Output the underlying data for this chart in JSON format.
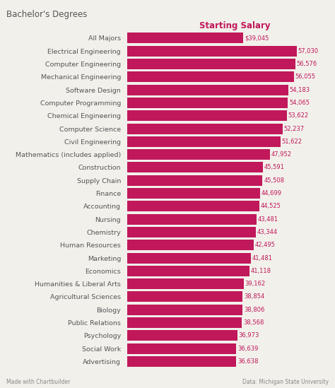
{
  "title": "Bachelor's Degrees",
  "column_header": "Starting Salary",
  "categories": [
    "All Majors",
    "Electrical Engineering",
    "Computer Engineering",
    "Mechanical Engineering",
    "Software Design",
    "Computer Programming",
    "Chemical Engineering",
    "Computer Science",
    "Civil Engineering",
    "Mathematics (includes applied)",
    "Construction",
    "Supply Chain",
    "Finance",
    "Accounting",
    "Nursing",
    "Chemistry",
    "Human Resources",
    "Marketing",
    "Economics",
    "Humanities & Liberal Arts",
    "Agricultural Sciences",
    "Biology",
    "Public Relations",
    "Psychology",
    "Social Work",
    "Advertising"
  ],
  "values": [
    39045,
    57030,
    56576,
    56055,
    54183,
    54065,
    53622,
    52237,
    51622,
    47952,
    45591,
    45508,
    44699,
    44525,
    43481,
    43344,
    42495,
    41481,
    41118,
    39162,
    38854,
    38806,
    38568,
    36973,
    36639,
    36638
  ],
  "labels": [
    "$39,045",
    "57,030",
    "56,576",
    "56,055",
    "54,183",
    "54,065",
    "53,622",
    "52,237",
    "51,622",
    "47,952",
    "45,591",
    "45,508",
    "44,699",
    "44,525",
    "43,481",
    "43,344",
    "42,495",
    "41,481",
    "41,118",
    "39,162",
    "38,854",
    "38,806",
    "38,568",
    "36,973",
    "36,639",
    "36,638"
  ],
  "bar_color": "#C0185A",
  "label_color": "#C0185A",
  "background_color": "#f2f0eb",
  "title_color": "#555555",
  "header_color": "#C0185A",
  "footer_left": "Made with Chartbuilder",
  "footer_right": "Data: Michigan State University",
  "xlim": [
    0,
    62000
  ]
}
